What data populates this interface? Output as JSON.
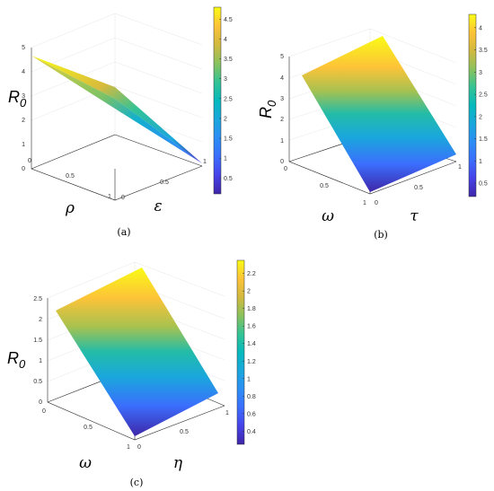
{
  "chart_data": [
    {
      "type": "surface",
      "panel_label": "(a)",
      "xlabel": "ρ",
      "ylabel": "ε",
      "zlabel": "R",
      "zlabel_sub": "0",
      "x_ticks": [
        "0",
        "0.5",
        "1"
      ],
      "y_ticks": [
        "0",
        "0.5",
        "1"
      ],
      "z_ticks": [
        "0",
        "1",
        "2",
        "3",
        "4",
        "5"
      ],
      "xlim": [
        0,
        1
      ],
      "ylim": [
        0,
        1
      ],
      "zlim": [
        0,
        5
      ],
      "grid": true,
      "colormap": "parula",
      "colorbar_ticks": [
        "0.5",
        "1",
        "1.5",
        "2",
        "2.5",
        "3",
        "3.5",
        "4",
        "4.5"
      ],
      "colorbar_range": [
        0.1,
        4.8
      ],
      "corner_values": {
        "x0_y0": 4.7,
        "x1_y0": 2.0,
        "x0_y1": 0.05,
        "x1_y1": 0.05
      }
    },
    {
      "type": "surface",
      "panel_label": "(b)",
      "xlabel": "ω",
      "ylabel": "τ",
      "zlabel": "R",
      "zlabel_sub": "0",
      "x_ticks": [
        "0",
        "0.5",
        "1"
      ],
      "y_ticks": [
        "0",
        "0.5",
        "1"
      ],
      "z_ticks": [
        "0",
        "1",
        "2",
        "3",
        "4",
        "5"
      ],
      "xlim": [
        0,
        1
      ],
      "ylim": [
        0,
        1
      ],
      "zlim": [
        0,
        5
      ],
      "grid": true,
      "colormap": "parula",
      "colorbar_ticks": [
        "0.5",
        "1",
        "1.5",
        "2",
        "2.5",
        "3",
        "3.5",
        "4"
      ],
      "colorbar_range": [
        0.2,
        4.3
      ],
      "corner_values": {
        "x0_y0": 4.25,
        "x1_y0": 0.2,
        "x0_y1": 4.25,
        "x1_y1": 0.2
      }
    },
    {
      "type": "surface",
      "panel_label": "(c)",
      "xlabel": "ω",
      "ylabel": "η",
      "zlabel": "R",
      "zlabel_sub": "0",
      "x_ticks": [
        "0",
        "0.5",
        "1"
      ],
      "y_ticks": [
        "0",
        "0.5",
        "1"
      ],
      "z_ticks": [
        "0",
        "0.5",
        "1",
        "1.5",
        "2",
        "2.5"
      ],
      "xlim": [
        0,
        1
      ],
      "ylim": [
        0,
        1
      ],
      "zlim": [
        0,
        2.5
      ],
      "grid": true,
      "colormap": "parula",
      "colorbar_ticks": [
        "0.4",
        "0.6",
        "0.8",
        "1",
        "1.2",
        "1.4",
        "1.6",
        "1.8",
        "2",
        "2.2"
      ],
      "colorbar_range": [
        0.25,
        2.35
      ],
      "corner_values": {
        "x0_y0": 2.35,
        "x1_y0": 0.25,
        "x0_y1": 2.35,
        "x1_y1": 0.25
      }
    }
  ]
}
